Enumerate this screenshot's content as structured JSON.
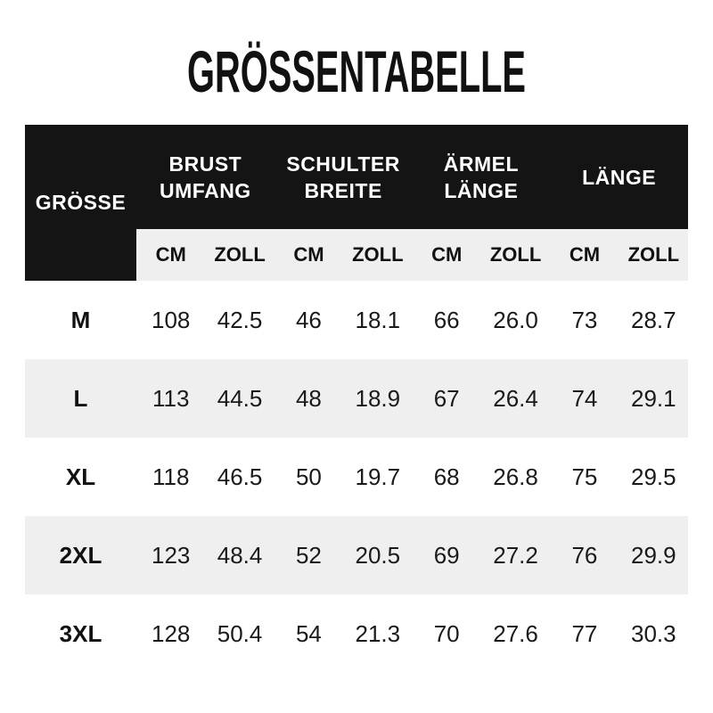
{
  "title": "GRÖSSENTABELLE",
  "table": {
    "size_header": "GRÖSSE",
    "groups": [
      {
        "label": "BRUST\nUMFANG"
      },
      {
        "label": "SCHULTER\nBREITE"
      },
      {
        "label": "ÄRMEL\nLÄNGE"
      },
      {
        "label": "LÄNGE"
      }
    ],
    "units": [
      "CM",
      "ZOLL",
      "CM",
      "ZOLL",
      "CM",
      "ZOLL",
      "CM",
      "ZOLL"
    ],
    "rows": [
      {
        "size": "M",
        "values": [
          "108",
          "42.5",
          "46",
          "18.1",
          "66",
          "26.0",
          "73",
          "28.7"
        ]
      },
      {
        "size": "L",
        "values": [
          "113",
          "44.5",
          "48",
          "18.9",
          "67",
          "26.4",
          "74",
          "29.1"
        ]
      },
      {
        "size": "XL",
        "values": [
          "118",
          "46.5",
          "50",
          "19.7",
          "68",
          "26.8",
          "75",
          "29.5"
        ]
      },
      {
        "size": "2XL",
        "values": [
          "123",
          "48.4",
          "52",
          "20.5",
          "69",
          "27.2",
          "76",
          "29.9"
        ]
      },
      {
        "size": "3XL",
        "values": [
          "128",
          "50.4",
          "54",
          "21.3",
          "70",
          "27.6",
          "77",
          "30.3"
        ]
      }
    ]
  },
  "colors": {
    "header_bg": "#141414",
    "header_text": "#ffffff",
    "unit_row_bg": "#efefef",
    "alt_row_bg": "#efefef",
    "row_bg": "#ffffff",
    "text": "#1a1a1a"
  },
  "chart_data": {
    "type": "table",
    "title": "GRÖSSENTABELLE",
    "columns": [
      "GRÖSSE",
      "BRUST UMFANG CM",
      "BRUST UMFANG ZOLL",
      "SCHULTER BREITE CM",
      "SCHULTER BREITE ZOLL",
      "ÄRMEL LÄNGE CM",
      "ÄRMEL LÄNGE ZOLL",
      "LÄNGE CM",
      "LÄNGE ZOLL"
    ],
    "rows": [
      [
        "M",
        108,
        42.5,
        46,
        18.1,
        66,
        26.0,
        73,
        28.7
      ],
      [
        "L",
        113,
        44.5,
        48,
        18.9,
        67,
        26.4,
        74,
        29.1
      ],
      [
        "XL",
        118,
        46.5,
        50,
        19.7,
        68,
        26.8,
        75,
        29.5
      ],
      [
        "2XL",
        123,
        48.4,
        52,
        20.5,
        69,
        27.2,
        76,
        29.9
      ],
      [
        "3XL",
        128,
        50.4,
        54,
        21.3,
        70,
        27.6,
        77,
        30.3
      ]
    ],
    "layout": "black header band with grouped CM/ZOLL sub-columns, zebra rows"
  }
}
